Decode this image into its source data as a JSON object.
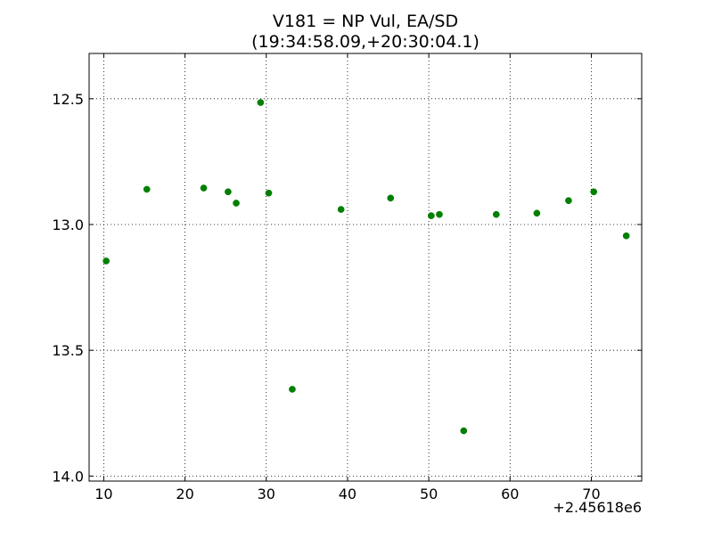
{
  "chart_data": {
    "type": "scatter",
    "title_lines": [
      "V181 = NP Vul, EA/SD",
      "(19:34:58.09,+20:30:04.1)"
    ],
    "xlabel": "",
    "ylabel": "",
    "x_offset_label": "+2.45618e6",
    "xlim": [
      8.2,
      76.2
    ],
    "ylim": [
      14.02,
      12.32
    ],
    "y_inverted": true,
    "x_ticks": [
      10,
      20,
      30,
      40,
      50,
      60,
      70
    ],
    "x_tick_labels": [
      "10",
      "20",
      "30",
      "40",
      "50",
      "60",
      "70"
    ],
    "y_ticks": [
      12.5,
      13.0,
      13.5,
      14.0
    ],
    "y_tick_labels": [
      "12.5",
      "13.0",
      "13.5",
      "14.0"
    ],
    "grid": true,
    "grid_style": "dotted",
    "legend": "none",
    "marker_color": "#007f00",
    "series": [
      {
        "x": [
          10.3,
          15.3,
          22.3,
          25.3,
          26.3,
          29.3,
          30.3,
          33.2,
          39.2,
          45.3,
          50.3,
          51.3,
          54.3,
          58.3,
          63.3,
          67.2,
          70.3,
          74.3
        ],
        "y": [
          13.145,
          12.86,
          12.855,
          12.87,
          12.915,
          12.515,
          12.875,
          13.655,
          12.94,
          12.895,
          12.965,
          12.96,
          13.82,
          12.96,
          12.955,
          12.905,
          12.87,
          13.045
        ]
      }
    ]
  }
}
